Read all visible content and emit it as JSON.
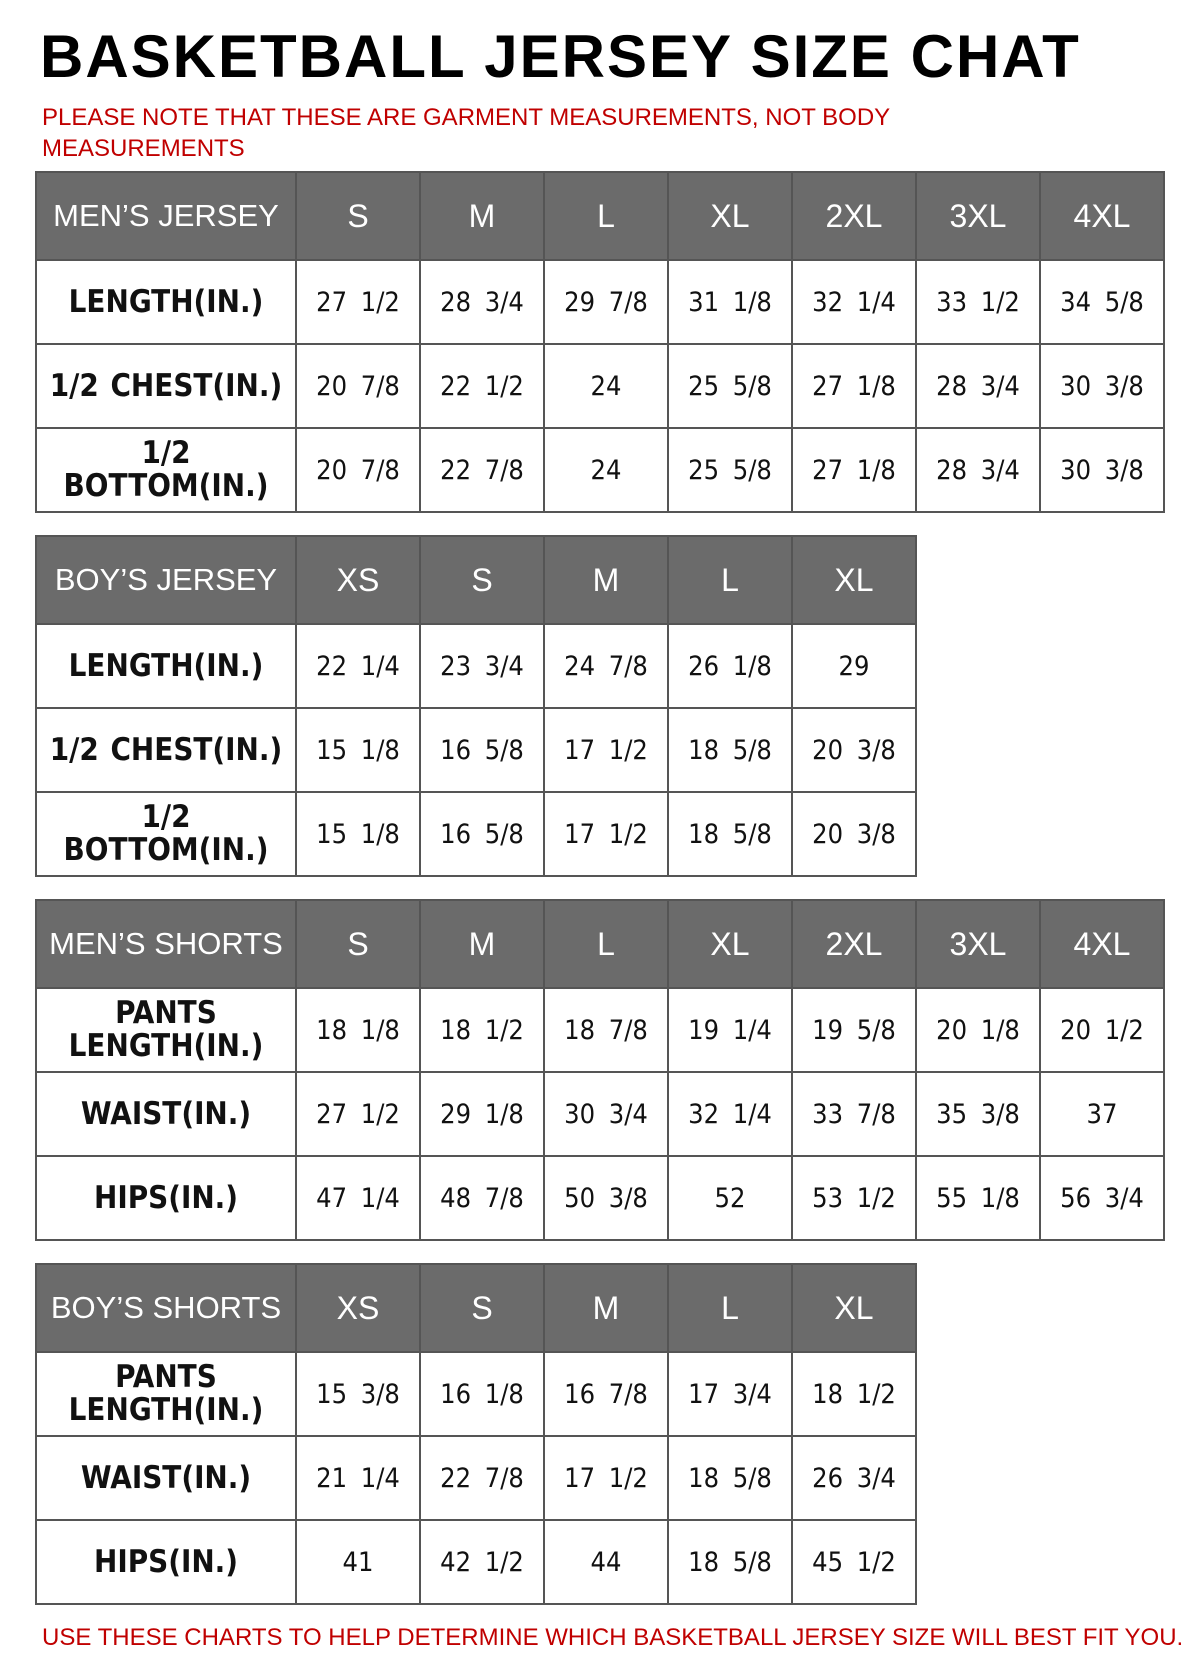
{
  "title": "BASKETBALL JERSEY SIZE CHAT",
  "note": "PLEASE NOTE THAT THESE ARE GARMENT MEASUREMENTS, NOT BODY MEASUREMENTS",
  "tables": [
    {
      "header": [
        "MEN’S JERSEY",
        "S",
        "M",
        "L",
        "XL",
        "2XL",
        "3XL",
        "4XL"
      ],
      "rows": [
        [
          "LENGTH(IN.)",
          "27 1/2",
          "28 3/4",
          "29 7/8",
          "31 1/8",
          "32 1/4",
          "33 1/2",
          "34 5/8"
        ],
        [
          "1/2 CHEST(IN.)",
          "20 7/8",
          "22 1/2",
          "24",
          "25 5/8",
          "27 1/8",
          "28 3/4",
          "30 3/8"
        ],
        [
          "1/2 BOTTOM(IN.)",
          "20 7/8",
          "22 7/8",
          "24",
          "25 5/8",
          "27 1/8",
          "28 3/4",
          "30 3/8"
        ]
      ]
    },
    {
      "header": [
        "BOY’S JERSEY",
        "XS",
        "S",
        "M",
        "L",
        "XL"
      ],
      "rows": [
        [
          "LENGTH(IN.)",
          "22 1/4",
          "23 3/4",
          "24 7/8",
          "26 1/8",
          "29"
        ],
        [
          "1/2 CHEST(IN.)",
          "15 1/8",
          "16 5/8",
          "17 1/2",
          "18 5/8",
          "20 3/8"
        ],
        [
          "1/2 BOTTOM(IN.)",
          "15 1/8",
          "16 5/8",
          "17 1/2",
          "18 5/8",
          "20 3/8"
        ]
      ]
    },
    {
      "header": [
        "MEN’S SHORTS",
        "S",
        "M",
        "L",
        "XL",
        "2XL",
        "3XL",
        "4XL"
      ],
      "rows": [
        [
          "PANTS LENGTH(IN.)",
          "18 1/8",
          "18 1/2",
          "18 7/8",
          "19 1/4",
          "19 5/8",
          "20 1/8",
          "20 1/2"
        ],
        [
          "WAIST(IN.)",
          "27 1/2",
          "29 1/8",
          "30 3/4",
          "32 1/4",
          "33 7/8",
          "35 3/8",
          "37"
        ],
        [
          "HIPS(IN.)",
          "47 1/4",
          "48 7/8",
          "50 3/8",
          "52",
          "53 1/2",
          "55 1/8",
          "56 3/4"
        ]
      ]
    },
    {
      "header": [
        "BOY’S SHORTS",
        "XS",
        "S",
        "M",
        "L",
        "XL"
      ],
      "rows": [
        [
          "PANTS LENGTH(IN.)",
          "15 3/8",
          "16 1/8",
          "16 7/8",
          "17 3/4",
          "18 1/2"
        ],
        [
          "WAIST(IN.)",
          "21 1/4",
          "22 7/8",
          "17 1/2",
          "18 5/8",
          "26 3/4"
        ],
        [
          "HIPS(IN.)",
          "41",
          "42 1/2",
          "44",
          "18 5/8",
          "45 1/2"
        ]
      ]
    }
  ],
  "footer": "USE THESE CHARTS TO HELP DETERMINE WHICH BASKETBALL JERSEY SIZE WILL BEST FIT YOU."
}
